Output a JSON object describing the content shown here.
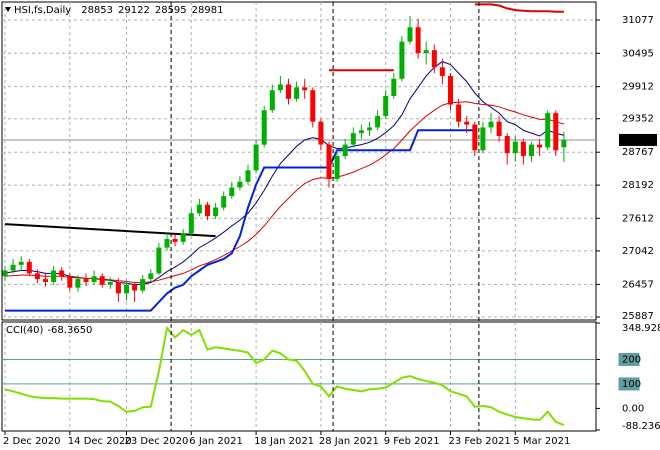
{
  "chart_data": [
    {
      "type": "candlestick",
      "title": "HSI,fs,Daily",
      "ohlc": [
        28853,
        29122,
        28595,
        28981
      ],
      "categories": [
        "2 Dec 2020",
        null,
        null,
        null,
        null,
        null,
        null,
        null,
        "14 Dec 2020",
        null,
        null,
        null,
        null,
        null,
        null,
        "23 Dec 2020",
        null,
        null,
        null,
        null,
        null,
        null,
        null,
        "6 Jan 2021",
        null,
        null,
        null,
        null,
        null,
        null,
        null,
        "18 Jan 2021",
        null,
        null,
        null,
        null,
        null,
        null,
        null,
        "28 Jan 2021",
        null,
        null,
        null,
        null,
        null,
        null,
        null,
        "9 Feb 2021",
        null,
        null,
        null,
        null,
        null,
        null,
        null,
        "23 Feb 2021",
        null,
        null,
        null,
        null,
        null,
        null,
        null,
        "5 Mar 2021",
        null,
        null,
        null,
        null,
        null,
        null
      ],
      "open": [
        26600,
        26700,
        26800,
        26850,
        26650,
        26550,
        26500,
        26700,
        26600,
        26400,
        26550,
        26500,
        26600,
        26450,
        26500,
        26300,
        26450,
        26350,
        26550,
        26650,
        27100,
        27250,
        27200,
        27350,
        27700,
        27850,
        27650,
        27800,
        28000,
        28150,
        28250,
        28450,
        28900,
        29500,
        29850,
        29950,
        29700,
        29900,
        29850,
        29300,
        28900,
        28300,
        28700,
        28900,
        29100,
        29150,
        29200,
        29400,
        29750,
        30050,
        30700,
        30950,
        30500,
        30550,
        30250,
        30100,
        29600,
        29300,
        29250,
        28800,
        29200,
        29300,
        29050,
        28750,
        28950,
        28700,
        28900,
        28850,
        29450,
        28853
      ],
      "high": [
        26780,
        26900,
        26950,
        26900,
        26720,
        26650,
        26780,
        26760,
        26650,
        26620,
        26650,
        26700,
        26650,
        26580,
        26560,
        26520,
        26500,
        26620,
        26720,
        27180,
        27350,
        27320,
        27420,
        27780,
        27950,
        27900,
        27880,
        28080,
        28250,
        28350,
        28550,
        28980,
        29580,
        29950,
        30100,
        30050,
        30000,
        30050,
        29900,
        29350,
        28950,
        28800,
        29000,
        29200,
        29250,
        29300,
        29500,
        29850,
        30150,
        30800,
        31150,
        31100,
        30700,
        30650,
        30400,
        30150,
        29700,
        29400,
        29300,
        29300,
        29450,
        29400,
        29100,
        29050,
        29000,
        28950,
        29000,
        29500,
        29500,
        29122
      ],
      "low": [
        26520,
        26650,
        26700,
        26600,
        26480,
        26420,
        26450,
        26520,
        26350,
        26330,
        26430,
        26450,
        26400,
        26380,
        26150,
        26180,
        26150,
        26300,
        26500,
        26620,
        27050,
        27120,
        27150,
        27300,
        27650,
        27580,
        27600,
        27750,
        27950,
        28100,
        28200,
        28400,
        28850,
        29450,
        29800,
        29600,
        29650,
        29700,
        29200,
        28800,
        28150,
        28250,
        28650,
        28850,
        29000,
        29050,
        29150,
        29350,
        29700,
        30000,
        30650,
        30400,
        30300,
        30150,
        29950,
        29500,
        29200,
        29100,
        28700,
        28750,
        29100,
        28950,
        28550,
        28600,
        28550,
        28600,
        28700,
        28800,
        28700,
        28595
      ],
      "close": [
        26700,
        26800,
        26850,
        26650,
        26550,
        26500,
        26700,
        26600,
        26400,
        26550,
        26500,
        26600,
        26450,
        26500,
        26300,
        26450,
        26350,
        26550,
        26650,
        27100,
        27250,
        27200,
        27350,
        27700,
        27850,
        27650,
        27800,
        28000,
        28150,
        28250,
        28450,
        28900,
        29500,
        29850,
        29950,
        29700,
        29900,
        29850,
        29300,
        28900,
        28300,
        28700,
        28900,
        29100,
        29150,
        29200,
        29400,
        29750,
        30050,
        30700,
        30950,
        30500,
        30550,
        30250,
        30100,
        29600,
        29300,
        29250,
        28800,
        29200,
        29300,
        29050,
        28750,
        28950,
        28700,
        28900,
        28850,
        29450,
        28800,
        28981
      ],
      "up_color": "#00b000",
      "down_color": "#ff0000",
      "series": [
        {
          "color": "#000080",
          "width": 1,
          "values": [
            26650,
            26680,
            26700,
            26700,
            26680,
            26650,
            26650,
            26640,
            26600,
            26580,
            26560,
            26560,
            26540,
            26530,
            26490,
            26480,
            26450,
            26460,
            26490,
            26580,
            26680,
            26760,
            26850,
            26970,
            27100,
            27180,
            27270,
            27370,
            27480,
            27580,
            27700,
            27880,
            28100,
            28350,
            28570,
            28720,
            28870,
            28980,
            29020,
            28990,
            28880,
            28830,
            28840,
            28870,
            28900,
            28940,
            29010,
            29110,
            29230,
            29420,
            29700,
            29900,
            30100,
            30250,
            30350,
            30300,
            30150,
            30000,
            29800,
            29650,
            29550,
            29450,
            29300,
            29250,
            29150,
            29100,
            29050,
            29150,
            29100,
            29060
          ]
        },
        {
          "color": "#e00000",
          "width": 1,
          "values": [
            26600,
            26610,
            26620,
            26620,
            26610,
            26600,
            26600,
            26600,
            26580,
            26570,
            26560,
            26560,
            26550,
            26540,
            26520,
            26510,
            26490,
            26490,
            26500,
            26530,
            26570,
            26610,
            26650,
            26710,
            26780,
            26830,
            26890,
            26960,
            27040,
            27120,
            27210,
            27330,
            27480,
            27650,
            27820,
            27960,
            28100,
            28220,
            28290,
            28320,
            28310,
            28330,
            28370,
            28420,
            28480,
            28540,
            28620,
            28720,
            28830,
            28980,
            29140,
            29270,
            29400,
            29500,
            29590,
            29630,
            29640,
            29650,
            29620,
            29600,
            29590,
            29560,
            29510,
            29470,
            29420,
            29380,
            29340,
            29340,
            29300,
            29260
          ]
        },
        {
          "color": "#0020e0",
          "width": 2,
          "values": [
            26000,
            26000,
            26000,
            26000,
            26000,
            26000,
            26000,
            26000,
            26000,
            26000,
            26000,
            26000,
            26000,
            26000,
            26000,
            26000,
            26000,
            26000,
            26000,
            26150,
            26300,
            26400,
            26450,
            26600,
            26700,
            26800,
            26850,
            26900,
            27000,
            27300,
            27800,
            28200,
            28500,
            28500,
            28500,
            28500,
            28500,
            28500,
            28500,
            28500,
            28500,
            28800,
            28800,
            28800,
            28800,
            28800,
            28800,
            28800,
            28800,
            28800,
            28800,
            29150,
            29150,
            29150,
            29150,
            29150,
            29150,
            29150,
            29150,
            null,
            null,
            null,
            null,
            null,
            null,
            null,
            null,
            null,
            null,
            null
          ]
        },
        {
          "color": "#e00000",
          "width": 2,
          "values": [
            null,
            null,
            null,
            null,
            null,
            null,
            null,
            null,
            null,
            null,
            null,
            null,
            null,
            null,
            null,
            null,
            null,
            null,
            null,
            null,
            null,
            null,
            null,
            null,
            null,
            null,
            null,
            null,
            null,
            null,
            null,
            null,
            null,
            null,
            null,
            null,
            null,
            null,
            null,
            null,
            30200,
            30200,
            30200,
            30200,
            30200,
            30200,
            30200,
            30200,
            30200,
            null,
            null,
            null,
            null,
            null,
            null,
            null,
            null,
            null,
            31350,
            31350,
            31350,
            31330,
            31280,
            31250,
            31240,
            31230,
            31230,
            31230,
            31220,
            31220
          ]
        }
      ],
      "trendline": {
        "x": [
          0,
          26
        ],
        "values": [
          27510,
          27300
        ],
        "color": "#000000"
      },
      "separators": [
        21,
        41,
        59
      ],
      "current_price": 28981,
      "ylim": [
        25835,
        31374
      ],
      "yticks": [
        31077,
        30495,
        29912,
        29352,
        28767,
        28192,
        27612,
        27042,
        26457,
        25887
      ],
      "grid": true
    },
    {
      "type": "line",
      "title": "CCI(40)",
      "last": {
        "value": -68.365,
        "label": "-68.3650"
      },
      "color": "#80e000",
      "values": [
        78,
        70,
        60,
        50,
        45,
        42,
        42,
        40,
        40,
        40,
        40,
        38,
        30,
        28,
        10,
        -14,
        -10,
        5,
        7,
        153,
        328,
        290,
        320,
        300,
        320,
        240,
        250,
        245,
        240,
        235,
        228,
        186,
        200,
        236,
        225,
        200,
        195,
        153,
        100,
        90,
        49,
        90,
        80,
        75,
        70,
        78,
        80,
        86,
        105,
        125,
        132,
        120,
        111,
        105,
        95,
        70,
        60,
        49,
        7,
        10,
        5,
        -14,
        -25,
        -35,
        -40,
        -45,
        -47,
        -14,
        -55,
        -68.365
      ],
      "levels": [
        200,
        100
      ],
      "level_color": "#5f9ea0",
      "ylim": [
        -88.2362,
        348.9287
      ],
      "yticks": [
        348.9287,
        200,
        100,
        {
          "value": 0,
          "label": "0.00"
        },
        -88.2362
      ]
    }
  ]
}
